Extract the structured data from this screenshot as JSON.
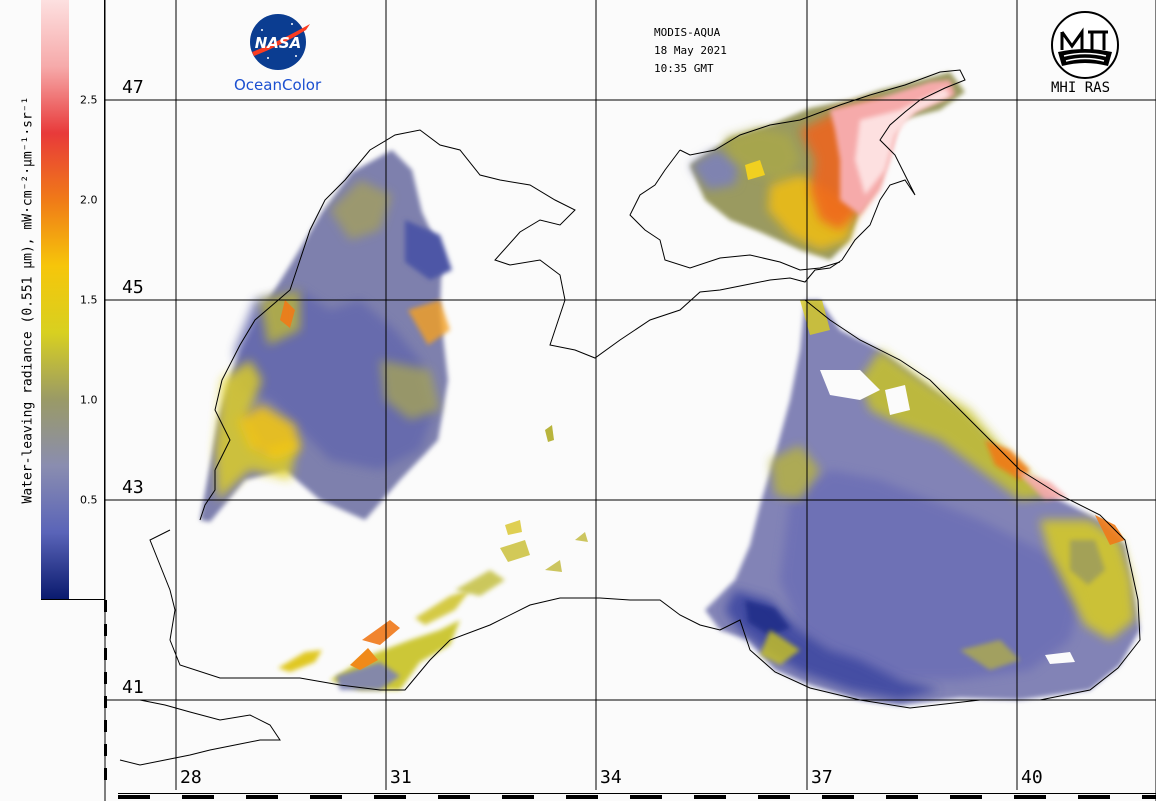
{
  "header": {
    "sensor": "MODIS-AQUA",
    "date": "18 May 2021",
    "time": "10:35 GMT"
  },
  "logos": {
    "nasa_text": "NASA",
    "oceancolor_text": "OceanColor",
    "mhi_text": "MHI RAS"
  },
  "colorbar": {
    "title": "Water-leaving radiance (0.551 μm), mW·cm⁻²·μm⁻¹·sr⁻¹",
    "ticks": [
      "0.5",
      "1.0",
      "1.5",
      "2.0",
      "2.5"
    ],
    "colors": [
      "#0a1a6e",
      "#5a64b8",
      "#8a8db0",
      "#9a9a66",
      "#d8d020",
      "#f6c60a",
      "#f07a18",
      "#e83a3a",
      "#f6aaaa",
      "#fde0e0"
    ]
  },
  "grid": {
    "latitudes": [
      "47",
      "45",
      "43",
      "41"
    ],
    "longitudes": [
      "28",
      "31",
      "34",
      "37",
      "40"
    ]
  }
}
